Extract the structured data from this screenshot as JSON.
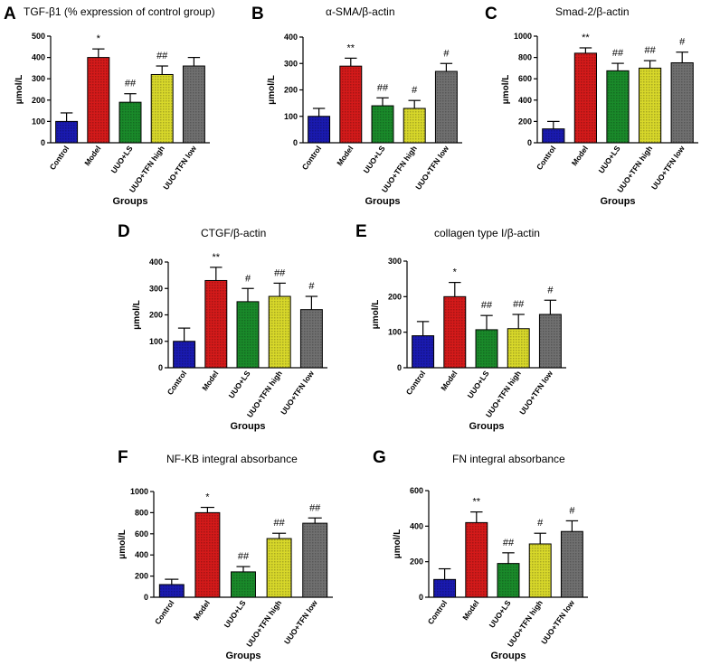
{
  "bar_colors": [
    "#1a1ab0",
    "#d41a1a",
    "#1a8a2a",
    "#d8d82a",
    "#707070"
  ],
  "chart_data": [
    {
      "type": "bar",
      "letter": "A",
      "title": "TGF-β1 (% expression of control group)",
      "categories": [
        "Control",
        "Model",
        "UUO+LS",
        "UUO+TFN high",
        "UUO+TFN low"
      ],
      "values": [
        100,
        400,
        190,
        320,
        360
      ],
      "errors": [
        40,
        40,
        40,
        40,
        40
      ],
      "significance": [
        "",
        "*",
        "##",
        "##",
        ""
      ],
      "ylim": [
        0,
        500
      ],
      "yticks": [
        "0",
        "100",
        "200",
        "300",
        "400",
        "500"
      ],
      "ylabel": "μmol/L",
      "xlabel": "Groups"
    },
    {
      "type": "bar",
      "letter": "B",
      "title": "α-SMA/β-actin",
      "categories": [
        "Control",
        "Model",
        "UUO+LS",
        "UUO+TFN high",
        "UUO+TFN low"
      ],
      "values": [
        100,
        290,
        140,
        130,
        270
      ],
      "errors": [
        30,
        30,
        30,
        30,
        30
      ],
      "significance": [
        "",
        "**",
        "##",
        "#",
        "#"
      ],
      "ylim": [
        0,
        400
      ],
      "yticks": [
        "0",
        "100",
        "200",
        "300",
        "400"
      ],
      "ylabel": "μmol/L",
      "xlabel": "Groups"
    },
    {
      "type": "bar",
      "letter": "C",
      "title": "Smad-2/β-actin",
      "categories": [
        "Control",
        "Model",
        "UUO+LS",
        "UUO+TFN high",
        "UUO+TFN low"
      ],
      "values": [
        130,
        840,
        675,
        700,
        750
      ],
      "errors": [
        70,
        50,
        70,
        70,
        100
      ],
      "significance": [
        "",
        "**",
        "##",
        "##",
        "#"
      ],
      "ylim": [
        0,
        1000
      ],
      "yticks": [
        "0",
        "200",
        "400",
        "600",
        "800",
        "1000"
      ],
      "ylabel": "μmol/L",
      "xlabel": "Groups"
    },
    {
      "type": "bar",
      "letter": "D",
      "title": "CTGF/β-actin",
      "categories": [
        "Control",
        "Model",
        "UUO+LS",
        "UUO+TFN high",
        "UUO+TFN low"
      ],
      "values": [
        100,
        330,
        250,
        270,
        220
      ],
      "errors": [
        50,
        50,
        50,
        50,
        50
      ],
      "significance": [
        "",
        "**",
        "#",
        "##",
        "#"
      ],
      "ylim": [
        0,
        400
      ],
      "yticks": [
        "0",
        "100",
        "200",
        "300",
        "400"
      ],
      "ylabel": "μmol/L",
      "xlabel": "Groups"
    },
    {
      "type": "bar",
      "letter": "E",
      "title": "collagen type I/β-actin",
      "categories": [
        "Control",
        "Model",
        "UUO+LS",
        "UUO+TFN high",
        "UUO+TFN low"
      ],
      "values": [
        90,
        200,
        107,
        110,
        150
      ],
      "errors": [
        40,
        40,
        40,
        40,
        40
      ],
      "significance": [
        "",
        "*",
        "##",
        "##",
        "#"
      ],
      "ylim": [
        0,
        300
      ],
      "yticks": [
        "0",
        "100",
        "200",
        "300"
      ],
      "ylabel": "μmol/L",
      "xlabel": "Groups"
    },
    {
      "type": "bar",
      "letter": "F",
      "title": "NF-KB integral absorbance",
      "categories": [
        "Control",
        "Model",
        "UUO+LS",
        "UUO+TFN high",
        "UUO+TFN low"
      ],
      "values": [
        120,
        800,
        240,
        555,
        700
      ],
      "errors": [
        50,
        50,
        50,
        50,
        50
      ],
      "significance": [
        "",
        "*",
        "##",
        "##",
        "##"
      ],
      "ylim": [
        0,
        1000
      ],
      "yticks": [
        "0",
        "200",
        "400",
        "600",
        "800",
        "1000"
      ],
      "ylabel": "μmol/L",
      "xlabel": "Groups"
    },
    {
      "type": "bar",
      "letter": "G",
      "title": "FN integral absorbance",
      "categories": [
        "Control",
        "Model",
        "UUO+LS",
        "UUO+TFN high",
        "UUO+TFN low"
      ],
      "values": [
        100,
        420,
        190,
        300,
        370
      ],
      "errors": [
        60,
        60,
        60,
        60,
        60
      ],
      "significance": [
        "",
        "**",
        "##",
        "#",
        "#"
      ],
      "ylim": [
        0,
        600
      ],
      "yticks": [
        "0",
        "200",
        "400",
        "600"
      ],
      "ylabel": "μmol/L",
      "xlabel": "Groups"
    }
  ]
}
